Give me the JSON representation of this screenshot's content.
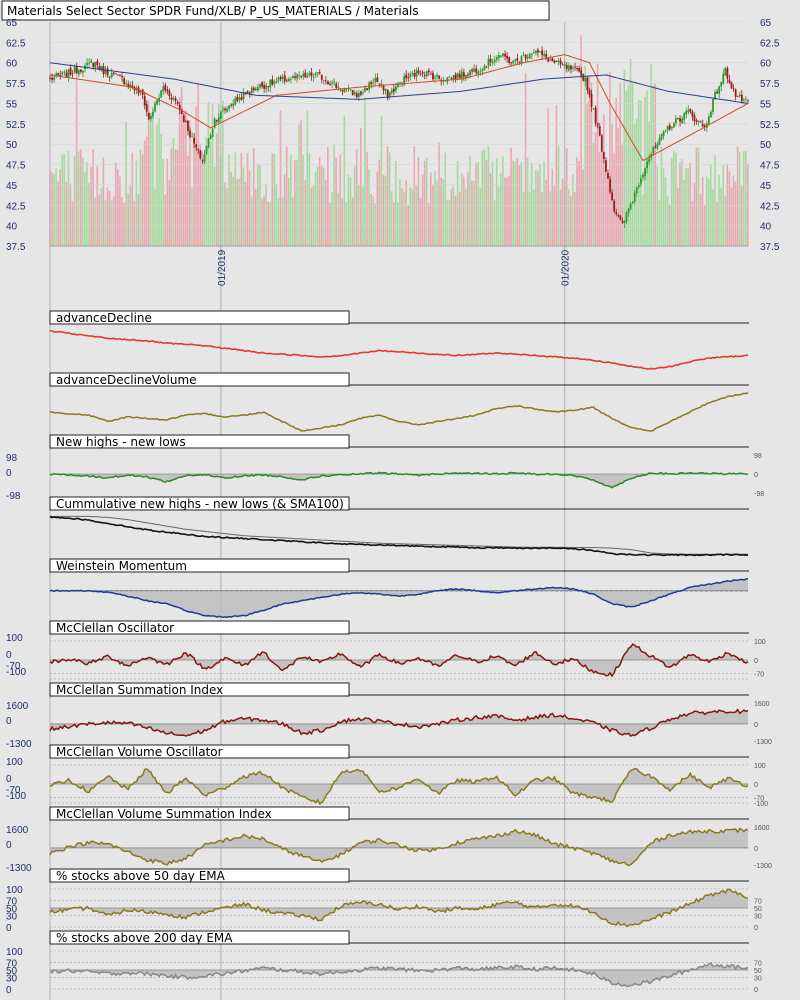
{
  "title": "Materials Select Sector SPDR Fund/XLB/ P_US_MATERIALS / Materials",
  "date_labels": [
    "01/2019",
    "01/2020"
  ],
  "colors": {
    "background": "#e6e6e6",
    "up_candle": "#2e9a2e",
    "down_candle": "#9a1a1a",
    "sma_red": "#d04a2a",
    "sma_blue": "#2a3f8a",
    "vol_up": "#a8d8a0",
    "vol_down": "#e8a8b0",
    "ad": "#e23b2b",
    "olive": "#8a7a1a",
    "green": "#2a8a2a",
    "black": "#111111",
    "navy": "#1e3a96",
    "maroon": "#8a1414",
    "gray": "#888888",
    "fill": "#bcbcbc"
  },
  "chart_data": [
    {
      "type": "candlestick",
      "title": "Materials Select Sector SPDR Fund/XLB/ P_US_MATERIALS / Materials",
      "y_ticks": [
        "65",
        "62.5",
        "60",
        "57.5",
        "55",
        "52.5",
        "50",
        "47.5",
        "45",
        "42.5",
        "40",
        "37.5"
      ],
      "ylim": [
        37.5,
        65
      ],
      "x_tick_labels": [
        "01/2019",
        "01/2020"
      ],
      "anchors": [
        [
          0,
          58
        ],
        [
          10,
          58.8
        ],
        [
          22,
          60
        ],
        [
          26,
          59
        ],
        [
          35,
          58
        ],
        [
          45,
          56
        ],
        [
          48,
          53
        ],
        [
          55,
          57
        ],
        [
          62,
          55
        ],
        [
          70,
          50
        ],
        [
          74,
          48
        ],
        [
          80,
          53
        ],
        [
          88,
          55
        ],
        [
          100,
          57
        ],
        [
          115,
          58
        ],
        [
          130,
          58.5
        ],
        [
          140,
          57
        ],
        [
          150,
          56
        ],
        [
          158,
          58
        ],
        [
          164,
          56
        ],
        [
          172,
          58
        ],
        [
          180,
          59
        ],
        [
          190,
          58
        ],
        [
          200,
          58.5
        ],
        [
          210,
          59.5
        ],
        [
          218,
          61
        ],
        [
          225,
          60
        ],
        [
          235,
          61.5
        ],
        [
          245,
          60
        ],
        [
          255,
          59
        ],
        [
          260,
          58
        ],
        [
          266,
          52
        ],
        [
          270,
          47
        ],
        [
          274,
          42
        ],
        [
          278,
          40
        ],
        [
          284,
          44
        ],
        [
          290,
          48
        ],
        [
          300,
          52
        ],
        [
          310,
          54
        ],
        [
          318,
          52
        ],
        [
          323,
          56
        ],
        [
          328,
          59
        ],
        [
          333,
          56
        ],
        [
          339,
          55
        ]
      ],
      "series": [
        {
          "name": "",
          "note": "SMA short",
          "anchors": [
            [
              0,
              58.5
            ],
            [
              40,
              57
            ],
            [
              65,
              54
            ],
            [
              78,
              52
            ],
            [
              110,
              56
            ],
            [
              150,
              57
            ],
            [
              200,
              58
            ],
            [
              230,
              60
            ],
            [
              250,
              61
            ],
            [
              262,
              60
            ],
            [
              272,
              55
            ],
            [
              288,
              48
            ],
            [
              310,
              51
            ],
            [
              339,
              55
            ]
          ]
        },
        {
          "name": "",
          "note": "SMA long",
          "anchors": [
            [
              0,
              60
            ],
            [
              60,
              58
            ],
            [
              100,
              56
            ],
            [
              150,
              55.5
            ],
            [
              200,
              56.5
            ],
            [
              240,
              58
            ],
            [
              270,
              58.5
            ],
            [
              300,
              56.5
            ],
            [
              339,
              55
            ]
          ]
        }
      ]
    },
    {
      "type": "line",
      "title": "advanceDecline",
      "values": [
        -20,
        -21,
        -22,
        -23,
        -23.5,
        -24,
        -25,
        -25.5,
        -26,
        -27,
        -28,
        -29,
        -29.5,
        -30,
        -30.5,
        -30,
        -29,
        -28,
        -28.5,
        -29,
        -29.5,
        -30,
        -29.5,
        -29,
        -29.5,
        -30,
        -30.5,
        -31,
        -32,
        -33,
        -34.5,
        -35.5,
        -34.5,
        -32.5,
        -31,
        -30.5,
        -30
      ]
    },
    {
      "type": "line",
      "title": "advanceDeclineVolume",
      "values": [
        0,
        -5,
        -10,
        -30,
        -15,
        -20,
        -25,
        -10,
        -5,
        -15,
        -10,
        0,
        -30,
        -60,
        -50,
        -40,
        -20,
        -10,
        -30,
        -40,
        -30,
        -20,
        -10,
        10,
        20,
        10,
        0,
        5,
        15,
        -20,
        -50,
        -60,
        -30,
        0,
        30,
        50,
        60
      ]
    },
    {
      "type": "area",
      "title": "New highs - new lows",
      "y_ticks": [
        "98",
        "0",
        "-98"
      ],
      "ylim": [
        -98,
        98
      ],
      "values": [
        0,
        -5,
        -10,
        -20,
        -5,
        -15,
        -40,
        -8,
        -5,
        -20,
        -10,
        -5,
        -15,
        -30,
        -10,
        -5,
        0,
        5,
        0,
        -5,
        0,
        5,
        3,
        0,
        5,
        0,
        0,
        -8,
        -30,
        -70,
        -20,
        5,
        0,
        5,
        3,
        0,
        2
      ]
    },
    {
      "type": "line",
      "title": "Cummulative new highs - new lows (& SMA100)",
      "values": [
        0,
        -1,
        -3,
        -6,
        -9,
        -12,
        -14,
        -16,
        -18,
        -19,
        -20,
        -21,
        -22,
        -23,
        -24,
        -25,
        -25.5,
        -26,
        -26.5,
        -27,
        -27.5,
        -28,
        -28.5,
        -28.7,
        -28.8,
        -28.9,
        -29,
        -29.5,
        -31,
        -34,
        -35,
        -35.2,
        -35.3,
        -35.3,
        -35.2,
        -35,
        -35
      ]
    },
    {
      "type": "area",
      "title": "Weinstein Momentum",
      "values": [
        0,
        0,
        0,
        -2,
        -8,
        -15,
        -20,
        -30,
        -38,
        -40,
        -38,
        -30,
        -20,
        -15,
        -10,
        -5,
        -3,
        -5,
        -8,
        -5,
        0,
        3,
        0,
        -3,
        0,
        3,
        5,
        3,
        -5,
        -20,
        -25,
        -15,
        -5,
        5,
        10,
        15,
        18
      ]
    },
    {
      "type": "area",
      "title": "McClellan Oscillator",
      "y_ticks": [
        "100",
        "0",
        "-70",
        "-100"
      ],
      "ylim": [
        -100,
        100
      ],
      "values": [
        -10,
        5,
        -20,
        20,
        -30,
        15,
        -25,
        40,
        -50,
        10,
        -30,
        45,
        -60,
        20,
        -15,
        35,
        -40,
        30,
        -20,
        10,
        -35,
        25,
        -10,
        20,
        -30,
        40,
        -20,
        5,
        -60,
        -80,
        85,
        20,
        -40,
        30,
        -10,
        40,
        -20
      ]
    },
    {
      "type": "area",
      "title": "McClellan Summation Index",
      "y_ticks": [
        "1600",
        "0",
        "-1300"
      ],
      "ylim": [
        -1300,
        1600
      ],
      "values": [
        -400,
        -200,
        0,
        100,
        50,
        -300,
        -700,
        -900,
        -500,
        200,
        400,
        300,
        0,
        -700,
        -500,
        200,
        400,
        200,
        0,
        -200,
        0,
        300,
        500,
        600,
        300,
        500,
        700,
        400,
        100,
        -500,
        -900,
        -300,
        400,
        800,
        900,
        1000,
        900
      ]
    },
    {
      "type": "area",
      "title": "McClellan Volume Oscillator",
      "y_ticks": [
        "100",
        "0",
        "-70",
        "-100"
      ],
      "ylim": [
        -100,
        100
      ],
      "values": [
        -10,
        20,
        -40,
        40,
        -30,
        80,
        -50,
        30,
        -60,
        -20,
        40,
        60,
        -20,
        -70,
        -100,
        60,
        80,
        -40,
        -20,
        30,
        -50,
        20,
        10,
        40,
        -60,
        20,
        30,
        -50,
        -70,
        -90,
        80,
        40,
        -30,
        50,
        -20,
        30,
        -10
      ]
    },
    {
      "type": "area",
      "title": "McClellan Volume Summation Index",
      "y_ticks": [
        "1600",
        "0",
        "-1300"
      ],
      "ylim": [
        -1300,
        1600
      ],
      "values": [
        -400,
        100,
        400,
        300,
        -300,
        -900,
        -1200,
        -800,
        200,
        600,
        900,
        700,
        -100,
        -600,
        -1100,
        -500,
        400,
        600,
        200,
        -200,
        -100,
        400,
        700,
        900,
        1300,
        1000,
        300,
        0,
        -400,
        -1000,
        -1300,
        400,
        1000,
        1200,
        1300,
        1300,
        1400
      ]
    },
    {
      "type": "area",
      "title": "% stocks above 50 day EMA",
      "y_ticks": [
        "100",
        "70",
        "50",
        "30",
        "0"
      ],
      "ylim": [
        0,
        100
      ],
      "values": [
        40,
        45,
        50,
        30,
        45,
        40,
        35,
        25,
        40,
        50,
        60,
        45,
        35,
        30,
        20,
        55,
        65,
        60,
        45,
        55,
        40,
        50,
        45,
        60,
        65,
        50,
        60,
        55,
        40,
        10,
        5,
        20,
        40,
        60,
        85,
        95,
        80
      ]
    },
    {
      "type": "area",
      "title": "% stocks above 200 day EMA",
      "y_ticks": [
        "100",
        "70",
        "50",
        "30",
        "0"
      ],
      "ylim": [
        0,
        100
      ],
      "values": [
        45,
        48,
        45,
        40,
        43,
        40,
        35,
        30,
        35,
        40,
        48,
        55,
        50,
        45,
        40,
        45,
        50,
        55,
        52,
        48,
        50,
        55,
        52,
        55,
        58,
        52,
        55,
        50,
        40,
        15,
        10,
        20,
        35,
        50,
        65,
        60,
        55
      ]
    }
  ]
}
